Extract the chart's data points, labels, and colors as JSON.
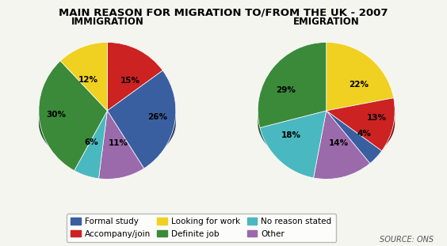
{
  "title": "MAIN REASON FOR MIGRATION TO/FROM THE UK - 2007",
  "immigration_label": "IMMIGRATION",
  "emigration_label": "EMIGRATION",
  "source": "SOURCE: ONS",
  "categories": [
    "Formal study",
    "Accompany/join",
    "Looking for work",
    "Definite job",
    "No reason stated",
    "Other"
  ],
  "colors": [
    "#3a5fa0",
    "#cc2222",
    "#f0d020",
    "#3a8a3a",
    "#4ab8c0",
    "#9b6aaa"
  ],
  "imm_slices": [
    {
      "label": "15%",
      "value": 15,
      "color": "#cc2222"
    },
    {
      "label": "26%",
      "value": 26,
      "color": "#3a5fa0"
    },
    {
      "label": "11%",
      "value": 11,
      "color": "#9b6aaa"
    },
    {
      "label": "6%",
      "value": 6,
      "color": "#4ab8c0"
    },
    {
      "label": "30%",
      "value": 30,
      "color": "#3a8a3a"
    },
    {
      "label": "12%",
      "value": 12,
      "color": "#f0d020"
    }
  ],
  "emi_slices": [
    {
      "label": "22%",
      "value": 22,
      "color": "#f0d020"
    },
    {
      "label": "13%",
      "value": 13,
      "color": "#cc2222"
    },
    {
      "label": "4%",
      "value": 4,
      "color": "#3a5fa0"
    },
    {
      "label": "14%",
      "value": 14,
      "color": "#9b6aaa"
    },
    {
      "label": "18%",
      "value": 18,
      "color": "#4ab8c0"
    },
    {
      "label": "29%",
      "value": 29,
      "color": "#3a8a3a"
    }
  ],
  "bg_color": "#f5f5f0",
  "title_fontsize": 9.5,
  "subtitle_fontsize": 8.5,
  "label_fontsize": 7.5,
  "legend_fontsize": 7.5
}
